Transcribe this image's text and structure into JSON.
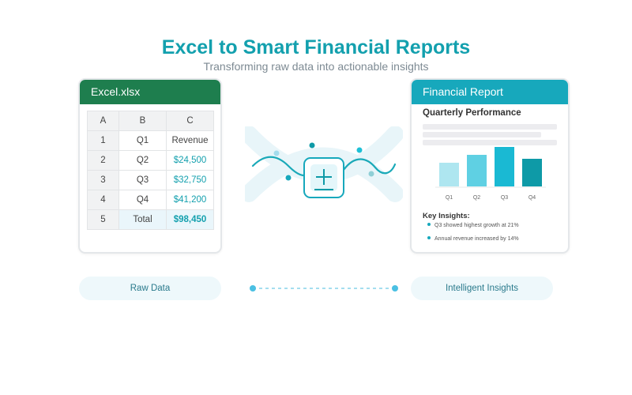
{
  "header": {
    "title": "Excel to Smart Financial Reports",
    "subtitle": "Transforming raw data into actionable insights"
  },
  "excel": {
    "filename": "Excel.xlsx",
    "columns": [
      "A",
      "B",
      "C"
    ],
    "rows": [
      {
        "a": "1",
        "b": "Q1",
        "c": "Revenue"
      },
      {
        "a": "2",
        "b": "Q2",
        "c": "$24,500"
      },
      {
        "a": "3",
        "b": "Q3",
        "c": "$32,750"
      },
      {
        "a": "4",
        "b": "Q4",
        "c": "$41,200"
      },
      {
        "a": "5",
        "b": "Total",
        "c": "$98,450"
      }
    ]
  },
  "report": {
    "title": "Financial Report",
    "section_title": "Quarterly Performance",
    "insights_title": "Key Insights:",
    "insights": [
      "Q3 showed highest growth at 21%",
      "Annual revenue increased by 14%"
    ]
  },
  "chart_data": {
    "type": "bar",
    "categories": [
      "Q1",
      "Q2",
      "Q3",
      "Q4"
    ],
    "values": [
      60,
      80,
      100,
      70
    ],
    "colors": [
      "#aee6f0",
      "#5fd0e3",
      "#1ab9d3",
      "#0e9aa7"
    ],
    "title": "",
    "xlabel": "",
    "ylabel": "",
    "ylim": [
      0,
      100
    ]
  },
  "labels": {
    "raw_data": "Raw Data",
    "intelligent_insights": "Intelligent Insights"
  },
  "colors": {
    "accent": "#13a0ae",
    "excel_green": "#1e7e4e",
    "report_teal": "#17a8bc"
  }
}
